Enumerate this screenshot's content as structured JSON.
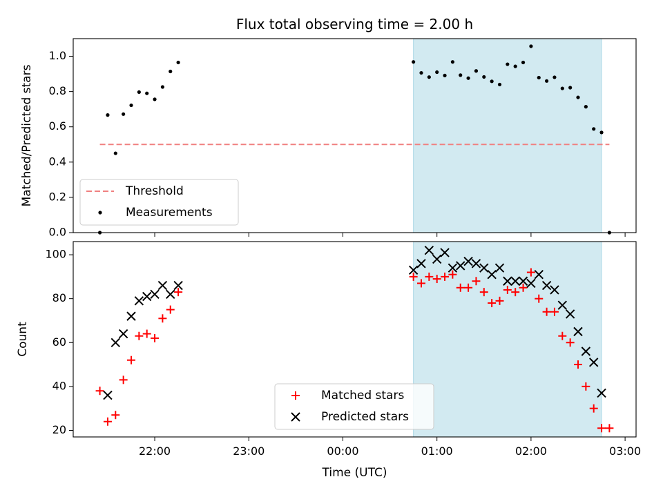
{
  "chart_data": [
    {
      "type": "scatter",
      "title": "Flux total observing time = 2.00 h",
      "xlabel": "",
      "ylabel": "Matched/Predicted stars",
      "xlim": [
        "21:08",
        "03:07"
      ],
      "ylim": [
        0,
        1.1
      ],
      "yticks": [
        0.0,
        0.2,
        0.4,
        0.6,
        0.8,
        1.0
      ],
      "ytick_labels": [
        "0.0",
        "0.2",
        "0.4",
        "0.6",
        "0.8",
        "1.0"
      ],
      "xticks": [
        "22:00",
        "23:00",
        "00:00",
        "01:00",
        "02:00",
        "03:00"
      ],
      "xtick_labels_shown": false,
      "highlight_span": {
        "start": "00:45",
        "end": "02:45",
        "color": "#add8e6"
      },
      "legend": {
        "position": "lower left",
        "entries": [
          "Threshold",
          "Measurements"
        ]
      },
      "threshold": {
        "name": "Threshold",
        "value": 0.5,
        "x_start": "21:25",
        "x_end": "02:50",
        "style": "dashed",
        "color": "#f08080"
      },
      "series": [
        {
          "name": "Measurements",
          "color": "#000000",
          "marker": "dot",
          "points": [
            [
              "21:25",
              0.0
            ],
            [
              "21:30",
              0.667
            ],
            [
              "21:35",
              0.45
            ],
            [
              "21:40",
              0.672
            ],
            [
              "21:45",
              0.722
            ],
            [
              "21:50",
              0.797
            ],
            [
              "21:55",
              0.79
            ],
            [
              "22:00",
              0.756
            ],
            [
              "22:05",
              0.826
            ],
            [
              "22:10",
              0.914
            ],
            [
              "22:15",
              0.965
            ],
            [
              "00:45",
              0.968
            ],
            [
              "00:50",
              0.906
            ],
            [
              "00:55",
              0.882
            ],
            [
              "01:00",
              0.91
            ],
            [
              "01:05",
              0.891
            ],
            [
              "01:10",
              0.968
            ],
            [
              "01:15",
              0.893
            ],
            [
              "01:20",
              0.876
            ],
            [
              "01:25",
              0.917
            ],
            [
              "01:30",
              0.883
            ],
            [
              "01:35",
              0.858
            ],
            [
              "01:40",
              0.84
            ],
            [
              "01:45",
              0.955
            ],
            [
              "01:50",
              0.943
            ],
            [
              "01:55",
              0.965
            ],
            [
              "02:00",
              1.057
            ],
            [
              "02:05",
              0.879
            ],
            [
              "02:10",
              0.86
            ],
            [
              "02:15",
              0.881
            ],
            [
              "02:20",
              0.818
            ],
            [
              "02:25",
              0.822
            ],
            [
              "02:30",
              0.767
            ],
            [
              "02:35",
              0.714
            ],
            [
              "02:40",
              0.588
            ],
            [
              "02:45",
              0.568
            ],
            [
              "02:50",
              0.0
            ]
          ]
        }
      ]
    },
    {
      "type": "scatter",
      "title": "",
      "xlabel": "Time (UTC)",
      "ylabel": "Count",
      "xlim": [
        "21:08",
        "03:07"
      ],
      "ylim": [
        17,
        106
      ],
      "yticks": [
        20,
        40,
        60,
        80,
        100
      ],
      "ytick_labels": [
        "20",
        "40",
        "60",
        "80",
        "100"
      ],
      "xticks": [
        "22:00",
        "23:00",
        "00:00",
        "01:00",
        "02:00",
        "03:00"
      ],
      "xtick_labels": [
        "22:00",
        "23:00",
        "00:00",
        "01:00",
        "02:00",
        "03:00"
      ],
      "highlight_span": {
        "start": "00:45",
        "end": "02:45",
        "color": "#add8e6"
      },
      "legend": {
        "position": "lower center",
        "entries": [
          "Matched stars",
          "Predicted stars"
        ]
      },
      "series": [
        {
          "name": "Matched stars",
          "color": "#ff0000",
          "marker": "plus",
          "points": [
            [
              "21:25",
              38
            ],
            [
              "21:30",
              24
            ],
            [
              "21:35",
              27
            ],
            [
              "21:40",
              43
            ],
            [
              "21:45",
              52
            ],
            [
              "21:50",
              63
            ],
            [
              "21:55",
              64
            ],
            [
              "22:00",
              62
            ],
            [
              "22:05",
              71
            ],
            [
              "22:10",
              75
            ],
            [
              "22:15",
              83
            ],
            [
              "00:45",
              90
            ],
            [
              "00:50",
              87
            ],
            [
              "00:55",
              90
            ],
            [
              "01:00",
              89
            ],
            [
              "01:05",
              90
            ],
            [
              "01:10",
              91
            ],
            [
              "01:15",
              85
            ],
            [
              "01:20",
              85
            ],
            [
              "01:25",
              88
            ],
            [
              "01:30",
              83
            ],
            [
              "01:35",
              78
            ],
            [
              "01:40",
              79
            ],
            [
              "01:45",
              84
            ],
            [
              "01:50",
              83
            ],
            [
              "01:55",
              85
            ],
            [
              "02:00",
              92
            ],
            [
              "02:05",
              80
            ],
            [
              "02:10",
              74
            ],
            [
              "02:15",
              74
            ],
            [
              "02:20",
              63
            ],
            [
              "02:25",
              60
            ],
            [
              "02:30",
              50
            ],
            [
              "02:35",
              40
            ],
            [
              "02:40",
              30
            ],
            [
              "02:45",
              21
            ],
            [
              "02:50",
              21
            ]
          ]
        },
        {
          "name": "Predicted stars",
          "color": "#000000",
          "marker": "x",
          "points": [
            [
              "21:30",
              36
            ],
            [
              "21:35",
              60
            ],
            [
              "21:40",
              64
            ],
            [
              "21:45",
              72
            ],
            [
              "21:50",
              79
            ],
            [
              "21:55",
              81
            ],
            [
              "22:00",
              82
            ],
            [
              "22:05",
              86
            ],
            [
              "22:10",
              82
            ],
            [
              "22:15",
              86
            ],
            [
              "00:45",
              93
            ],
            [
              "00:50",
              96
            ],
            [
              "00:55",
              102
            ],
            [
              "01:00",
              98
            ],
            [
              "01:05",
              101
            ],
            [
              "01:10",
              94
            ],
            [
              "01:15",
              95
            ],
            [
              "01:20",
              97
            ],
            [
              "01:25",
              96
            ],
            [
              "01:30",
              94
            ],
            [
              "01:35",
              91
            ],
            [
              "01:40",
              94
            ],
            [
              "01:45",
              88
            ],
            [
              "01:50",
              88
            ],
            [
              "01:55",
              88
            ],
            [
              "02:00",
              87
            ],
            [
              "02:05",
              91
            ],
            [
              "02:10",
              86
            ],
            [
              "02:15",
              84
            ],
            [
              "02:20",
              77
            ],
            [
              "02:25",
              73
            ],
            [
              "02:30",
              65
            ],
            [
              "02:35",
              56
            ],
            [
              "02:40",
              51
            ],
            [
              "02:45",
              37
            ]
          ]
        }
      ]
    }
  ]
}
